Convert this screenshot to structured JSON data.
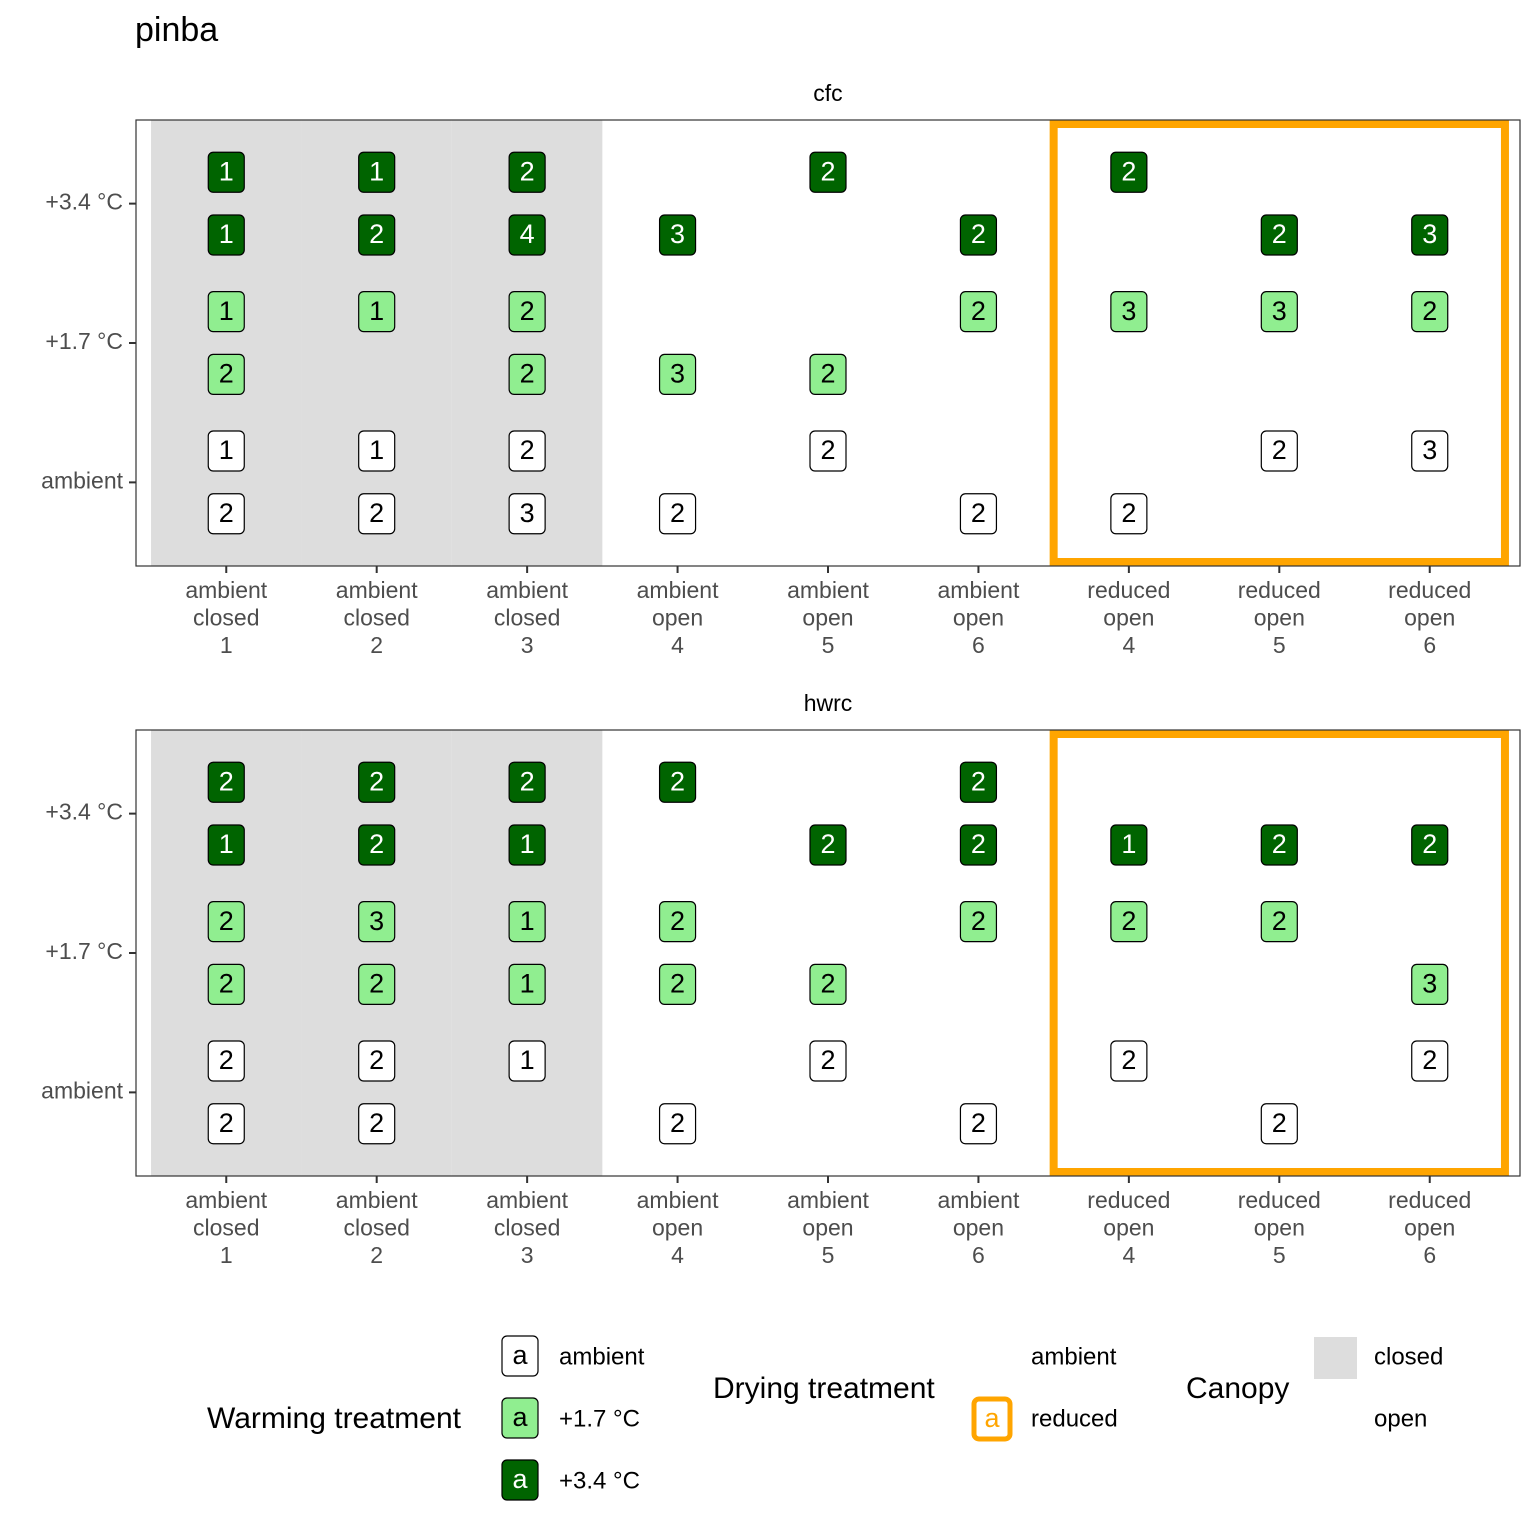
{
  "title": "pinba",
  "chart_data": [
    {
      "type": "label",
      "title": "cfc",
      "categories": [
        [
          "ambient",
          "closed",
          "1"
        ],
        [
          "ambient",
          "closed",
          "2"
        ],
        [
          "ambient",
          "closed",
          "3"
        ],
        [
          "ambient",
          "open",
          "4"
        ],
        [
          "ambient",
          "open",
          "5"
        ],
        [
          "ambient",
          "open",
          "6"
        ],
        [
          "reduced",
          "open",
          "4"
        ],
        [
          "reduced",
          "open",
          "5"
        ],
        [
          "reduced",
          "open",
          "6"
        ]
      ],
      "y_categories": [
        "ambient",
        "+1.7 °C",
        "+3.4 °C"
      ],
      "series": [
        {
          "name": "ambient",
          "color": "#ffffff",
          "text_color": "#000000",
          "values": [
            [
              1,
              2
            ],
            [
              1,
              2
            ],
            [
              2,
              3
            ],
            [
              null,
              2
            ],
            [
              2,
              null
            ],
            [
              null,
              2
            ],
            [
              null,
              2
            ],
            [
              2,
              null
            ],
            [
              3,
              null
            ]
          ]
        },
        {
          "name": "+1.7 °C",
          "color": "#90ee90",
          "text_color": "#000000",
          "values": [
            [
              1,
              2
            ],
            [
              1,
              null
            ],
            [
              2,
              2
            ],
            [
              null,
              3
            ],
            [
              null,
              2
            ],
            [
              2,
              null
            ],
            [
              3,
              null
            ],
            [
              3,
              null
            ],
            [
              2,
              null
            ]
          ]
        },
        {
          "name": "+3.4 °C",
          "color": "#006400",
          "text_color": "#ffffff",
          "values": [
            [
              1,
              1
            ],
            [
              1,
              2
            ],
            [
              2,
              4
            ],
            [
              null,
              3
            ],
            [
              2,
              null
            ],
            [
              null,
              2
            ],
            [
              2,
              null
            ],
            [
              null,
              2
            ],
            [
              null,
              3
            ]
          ]
        }
      ]
    },
    {
      "type": "label",
      "title": "hwrc",
      "categories": [
        [
          "ambient",
          "closed",
          "1"
        ],
        [
          "ambient",
          "closed",
          "2"
        ],
        [
          "ambient",
          "closed",
          "3"
        ],
        [
          "ambient",
          "open",
          "4"
        ],
        [
          "ambient",
          "open",
          "5"
        ],
        [
          "ambient",
          "open",
          "6"
        ],
        [
          "reduced",
          "open",
          "4"
        ],
        [
          "reduced",
          "open",
          "5"
        ],
        [
          "reduced",
          "open",
          "6"
        ]
      ],
      "y_categories": [
        "ambient",
        "+1.7 °C",
        "+3.4 °C"
      ],
      "series": [
        {
          "name": "ambient",
          "color": "#ffffff",
          "text_color": "#000000",
          "values": [
            [
              2,
              2
            ],
            [
              2,
              2
            ],
            [
              1,
              null
            ],
            [
              null,
              2
            ],
            [
              2,
              null
            ],
            [
              null,
              2
            ],
            [
              2,
              null
            ],
            [
              null,
              2
            ],
            [
              2,
              null
            ]
          ]
        },
        {
          "name": "+1.7 °C",
          "color": "#90ee90",
          "text_color": "#000000",
          "values": [
            [
              2,
              2
            ],
            [
              3,
              2
            ],
            [
              1,
              1
            ],
            [
              2,
              2
            ],
            [
              null,
              2
            ],
            [
              2,
              null
            ],
            [
              2,
              null
            ],
            [
              2,
              null
            ],
            [
              null,
              3
            ]
          ]
        },
        {
          "name": "+3.4 °C",
          "color": "#006400",
          "text_color": "#ffffff",
          "values": [
            [
              2,
              1
            ],
            [
              2,
              2
            ],
            [
              2,
              1
            ],
            [
              2,
              null
            ],
            [
              null,
              2
            ],
            [
              2,
              2
            ],
            [
              null,
              1
            ],
            [
              null,
              2
            ],
            [
              null,
              2
            ]
          ]
        }
      ]
    }
  ],
  "legends": {
    "warming_title": "Warming treatment",
    "key_text": "a",
    "drying": {
      "title": "Drying treatment",
      "items": [
        {
          "label": "ambient",
          "color": null
        },
        {
          "label": "reduced",
          "color": "#ffa500"
        }
      ]
    },
    "canopy": {
      "title": "Canopy",
      "items": [
        {
          "label": "closed",
          "fill": "#dddddd"
        },
        {
          "label": "open",
          "fill": null
        }
      ]
    }
  }
}
